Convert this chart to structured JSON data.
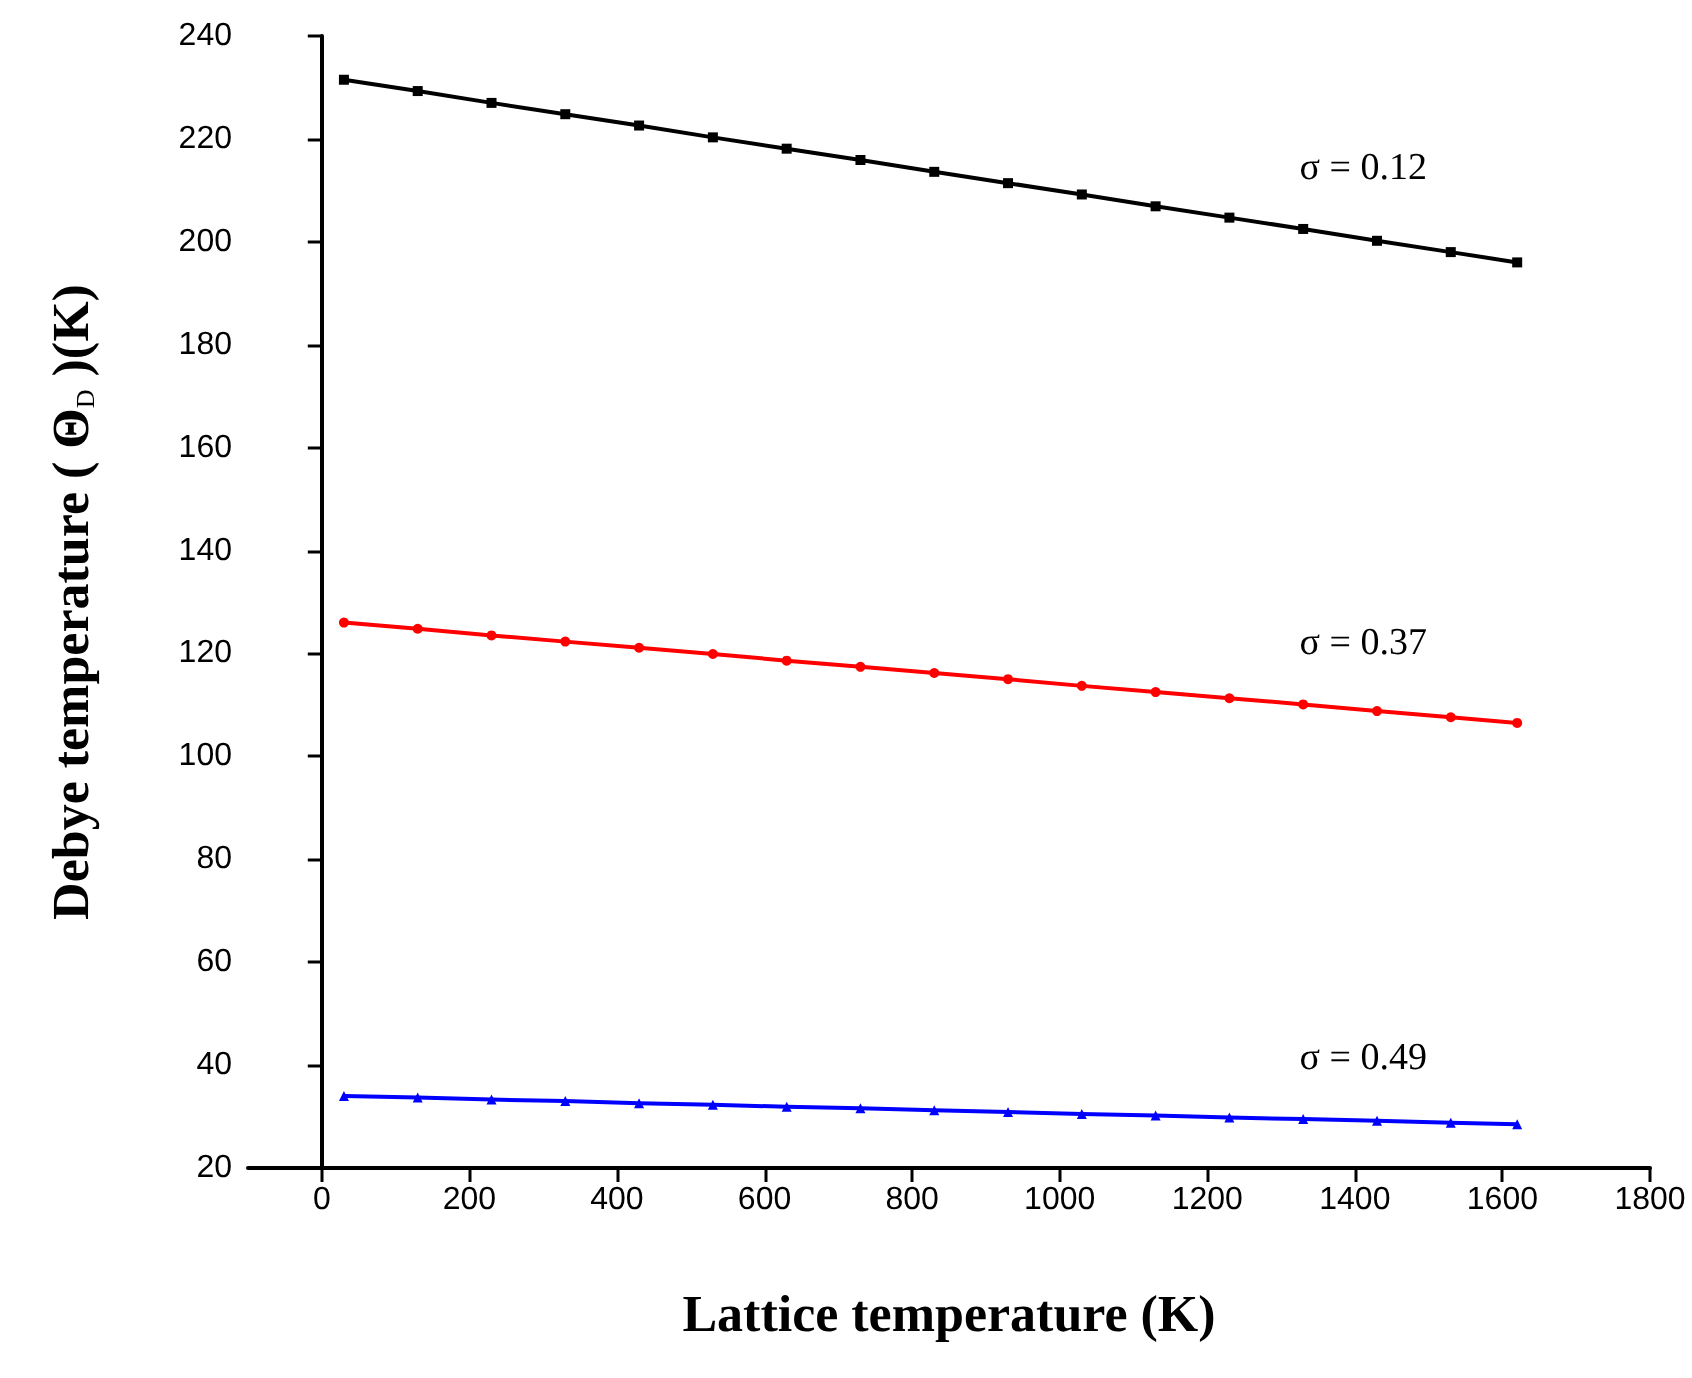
{
  "chart_data": {
    "type": "line",
    "xlabel": "Lattice temperature (K)",
    "ylabel": "Debye temperature ( Θ$_{D}$ )(K)",
    "x": [
      30,
      130,
      230,
      330,
      430,
      530,
      630,
      730,
      830,
      930,
      1030,
      1130,
      1230,
      1330,
      1430,
      1530,
      1620
    ],
    "series": [
      {
        "color": "#000000",
        "marker": "square",
        "values": [
          231.5,
          229.3,
          227.0,
          224.8,
          222.6,
          220.3,
          218.1,
          215.9,
          213.6,
          211.4,
          209.2,
          206.9,
          204.7,
          202.5,
          200.2,
          198.0,
          196.0
        ]
      },
      {
        "color": "#ff0000",
        "marker": "circle",
        "values": [
          126.0,
          124.8,
          123.5,
          122.3,
          121.1,
          119.9,
          118.6,
          117.4,
          116.2,
          115.0,
          113.7,
          112.5,
          111.3,
          110.1,
          108.8,
          107.6,
          106.5
        ]
      },
      {
        "color": "#0000ff",
        "marker": "triangle",
        "values": [
          34.0,
          33.7,
          33.3,
          33.0,
          32.6,
          32.3,
          31.9,
          31.6,
          31.2,
          30.9,
          30.5,
          30.2,
          29.8,
          29.5,
          29.2,
          28.8,
          28.5
        ]
      }
    ],
    "annotations": [
      "σ = 0.12",
      "σ = 0.37",
      "σ = 0.49"
    ],
    "xlim": [
      -100,
      1800
    ],
    "xticks": [
      0,
      200,
      400,
      600,
      800,
      1000,
      1200,
      1400,
      1600,
      1800
    ],
    "ylim": [
      20,
      240
    ],
    "yticks": [
      20,
      40,
      60,
      80,
      100,
      120,
      140,
      160,
      180,
      200,
      220,
      240
    ],
    "line_style": "solid"
  }
}
